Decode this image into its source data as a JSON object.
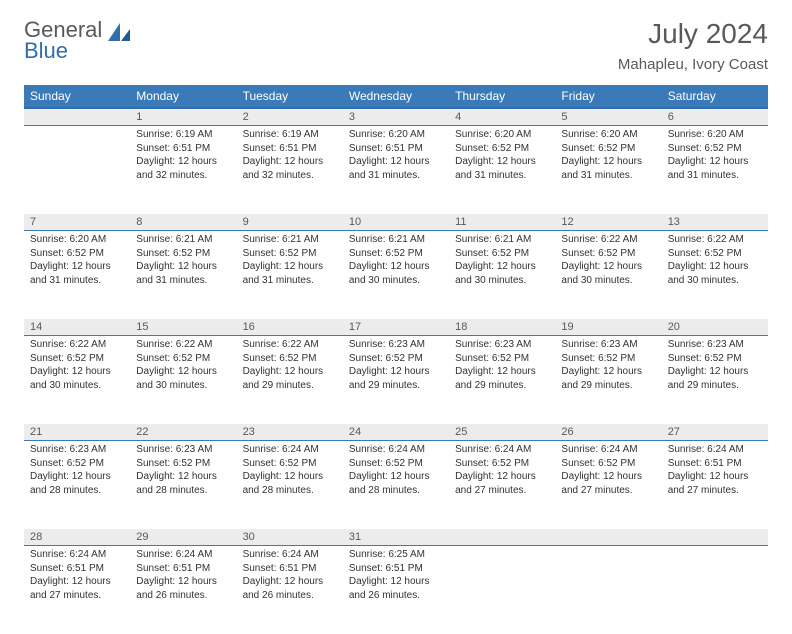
{
  "logo": {
    "line1": "General",
    "line2": "Blue"
  },
  "title": "July 2024",
  "location": "Mahapleu, Ivory Coast",
  "colors": {
    "header_bg": "#3a7ab8",
    "header_border": "#2f6fad",
    "daynum_bg": "#ececec",
    "text": "#333333",
    "muted": "#595959"
  },
  "day_headers": [
    "Sunday",
    "Monday",
    "Tuesday",
    "Wednesday",
    "Thursday",
    "Friday",
    "Saturday"
  ],
  "weeks": [
    [
      null,
      {
        "n": "1",
        "sr": "6:19 AM",
        "ss": "6:51 PM",
        "dl": "12 hours and 32 minutes."
      },
      {
        "n": "2",
        "sr": "6:19 AM",
        "ss": "6:51 PM",
        "dl": "12 hours and 32 minutes."
      },
      {
        "n": "3",
        "sr": "6:20 AM",
        "ss": "6:51 PM",
        "dl": "12 hours and 31 minutes."
      },
      {
        "n": "4",
        "sr": "6:20 AM",
        "ss": "6:52 PM",
        "dl": "12 hours and 31 minutes."
      },
      {
        "n": "5",
        "sr": "6:20 AM",
        "ss": "6:52 PM",
        "dl": "12 hours and 31 minutes."
      },
      {
        "n": "6",
        "sr": "6:20 AM",
        "ss": "6:52 PM",
        "dl": "12 hours and 31 minutes."
      }
    ],
    [
      {
        "n": "7",
        "sr": "6:20 AM",
        "ss": "6:52 PM",
        "dl": "12 hours and 31 minutes."
      },
      {
        "n": "8",
        "sr": "6:21 AM",
        "ss": "6:52 PM",
        "dl": "12 hours and 31 minutes."
      },
      {
        "n": "9",
        "sr": "6:21 AM",
        "ss": "6:52 PM",
        "dl": "12 hours and 31 minutes."
      },
      {
        "n": "10",
        "sr": "6:21 AM",
        "ss": "6:52 PM",
        "dl": "12 hours and 30 minutes."
      },
      {
        "n": "11",
        "sr": "6:21 AM",
        "ss": "6:52 PM",
        "dl": "12 hours and 30 minutes."
      },
      {
        "n": "12",
        "sr": "6:22 AM",
        "ss": "6:52 PM",
        "dl": "12 hours and 30 minutes."
      },
      {
        "n": "13",
        "sr": "6:22 AM",
        "ss": "6:52 PM",
        "dl": "12 hours and 30 minutes."
      }
    ],
    [
      {
        "n": "14",
        "sr": "6:22 AM",
        "ss": "6:52 PM",
        "dl": "12 hours and 30 minutes."
      },
      {
        "n": "15",
        "sr": "6:22 AM",
        "ss": "6:52 PM",
        "dl": "12 hours and 30 minutes."
      },
      {
        "n": "16",
        "sr": "6:22 AM",
        "ss": "6:52 PM",
        "dl": "12 hours and 29 minutes."
      },
      {
        "n": "17",
        "sr": "6:23 AM",
        "ss": "6:52 PM",
        "dl": "12 hours and 29 minutes."
      },
      {
        "n": "18",
        "sr": "6:23 AM",
        "ss": "6:52 PM",
        "dl": "12 hours and 29 minutes."
      },
      {
        "n": "19",
        "sr": "6:23 AM",
        "ss": "6:52 PM",
        "dl": "12 hours and 29 minutes."
      },
      {
        "n": "20",
        "sr": "6:23 AM",
        "ss": "6:52 PM",
        "dl": "12 hours and 29 minutes."
      }
    ],
    [
      {
        "n": "21",
        "sr": "6:23 AM",
        "ss": "6:52 PM",
        "dl": "12 hours and 28 minutes."
      },
      {
        "n": "22",
        "sr": "6:23 AM",
        "ss": "6:52 PM",
        "dl": "12 hours and 28 minutes."
      },
      {
        "n": "23",
        "sr": "6:24 AM",
        "ss": "6:52 PM",
        "dl": "12 hours and 28 minutes."
      },
      {
        "n": "24",
        "sr": "6:24 AM",
        "ss": "6:52 PM",
        "dl": "12 hours and 28 minutes."
      },
      {
        "n": "25",
        "sr": "6:24 AM",
        "ss": "6:52 PM",
        "dl": "12 hours and 27 minutes."
      },
      {
        "n": "26",
        "sr": "6:24 AM",
        "ss": "6:52 PM",
        "dl": "12 hours and 27 minutes."
      },
      {
        "n": "27",
        "sr": "6:24 AM",
        "ss": "6:51 PM",
        "dl": "12 hours and 27 minutes."
      }
    ],
    [
      {
        "n": "28",
        "sr": "6:24 AM",
        "ss": "6:51 PM",
        "dl": "12 hours and 27 minutes."
      },
      {
        "n": "29",
        "sr": "6:24 AM",
        "ss": "6:51 PM",
        "dl": "12 hours and 26 minutes."
      },
      {
        "n": "30",
        "sr": "6:24 AM",
        "ss": "6:51 PM",
        "dl": "12 hours and 26 minutes."
      },
      {
        "n": "31",
        "sr": "6:25 AM",
        "ss": "6:51 PM",
        "dl": "12 hours and 26 minutes."
      },
      null,
      null,
      null
    ]
  ],
  "labels": {
    "sunrise": "Sunrise:",
    "sunset": "Sunset:",
    "daylight": "Daylight:"
  }
}
